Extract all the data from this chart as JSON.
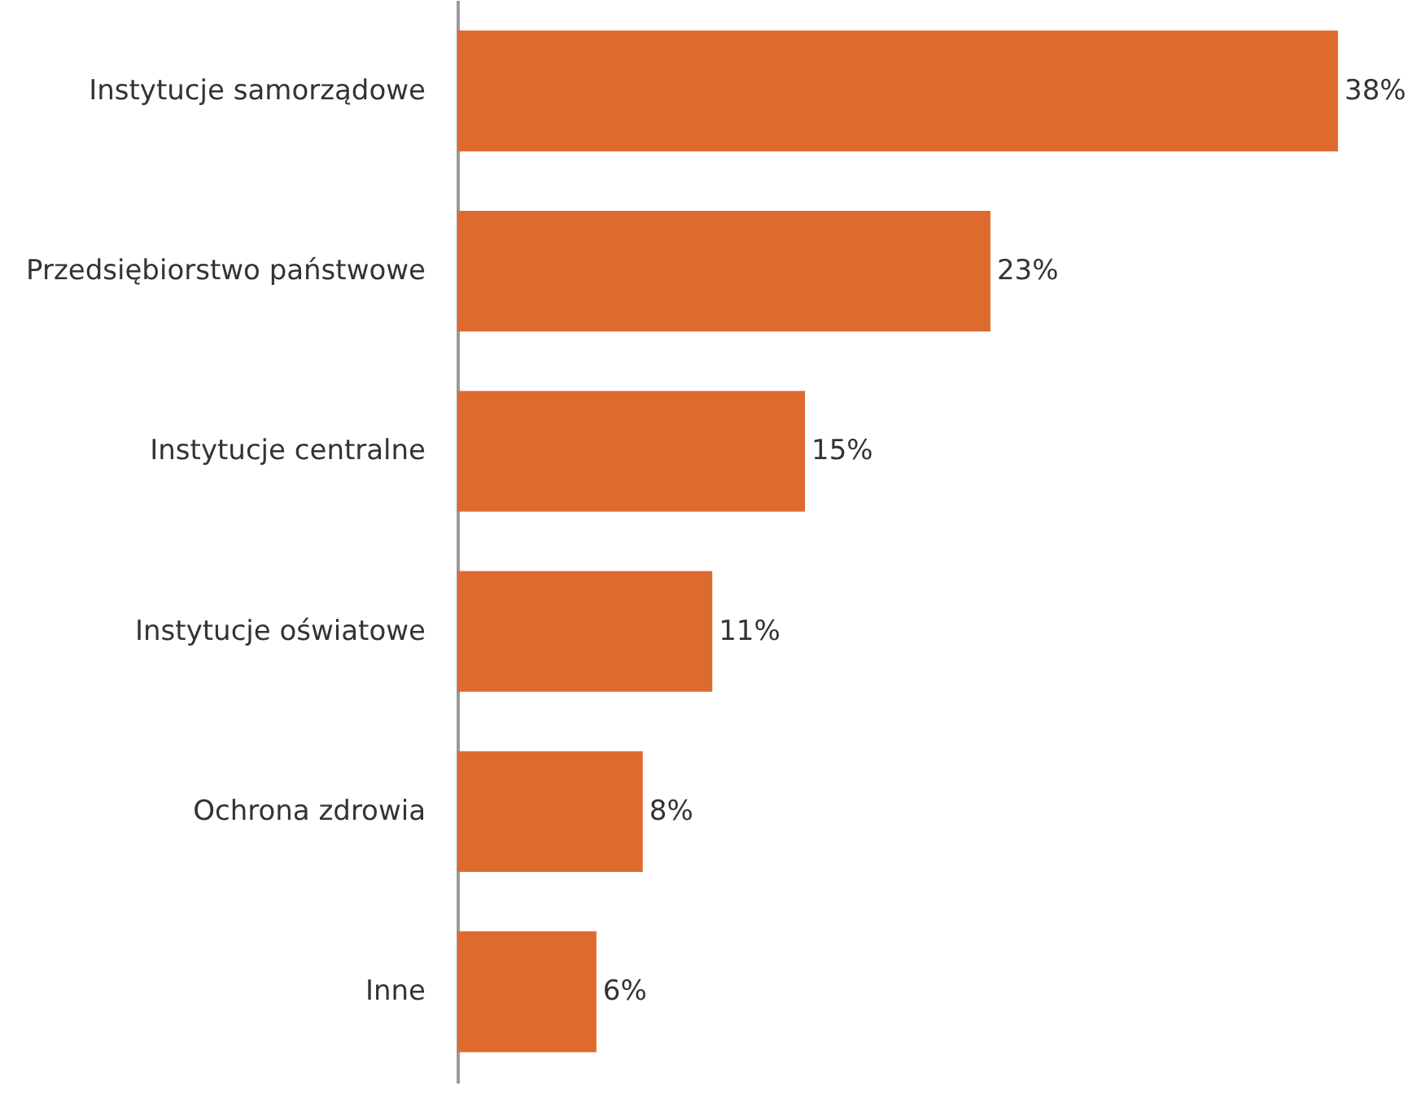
{
  "chart_data": {
    "type": "bar",
    "orientation": "horizontal",
    "categories": [
      "Instytucje samorządowe",
      "Przedsiębiorstwo państwowe",
      "Instytucje centralne",
      "Instytucje oświatowe",
      "Ochrona zdrowia",
      "Inne"
    ],
    "values": [
      38,
      23,
      15,
      11,
      8,
      6
    ],
    "value_labels": [
      "38%",
      "23%",
      "15%",
      "11%",
      "8%",
      "6%"
    ],
    "color": "#dd6b2e",
    "grid": false,
    "tick_labels": "y"
  }
}
